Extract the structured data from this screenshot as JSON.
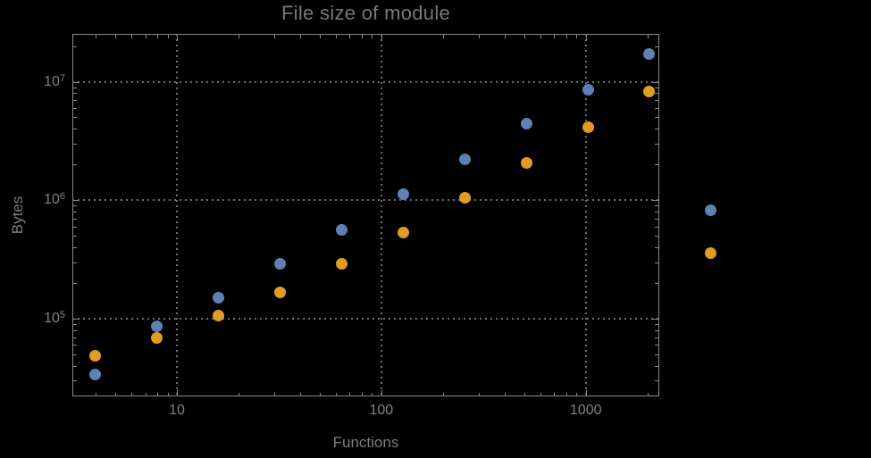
{
  "chart_data": {
    "type": "scatter",
    "title": "File size of module",
    "xlabel": "Functions",
    "ylabel": "Bytes",
    "x_scale": "log",
    "y_scale": "log",
    "grid": "dotted",
    "legend": "none",
    "background_color": "#000000",
    "frame_color": "#8a8a8a",
    "grid_color": "#6f6f6f",
    "text_color": "#7d7d7d",
    "xlim": [
      3.1,
      2290
    ],
    "ylim": [
      22000,
      24400000
    ],
    "x_major_ticks": [
      {
        "value": 10,
        "label": "10"
      },
      {
        "value": 100,
        "label": "100"
      },
      {
        "value": 1000,
        "label": "1000"
      }
    ],
    "y_major_ticks": [
      {
        "value": 100000,
        "base": "10",
        "exp": "5"
      },
      {
        "value": 1000000,
        "base": "10",
        "exp": "6"
      },
      {
        "value": 10000000,
        "base": "10",
        "exp": "7"
      }
    ],
    "x": [
      4,
      8,
      16,
      32,
      64,
      128,
      256,
      512,
      1024,
      2048,
      4096
    ],
    "series": [
      {
        "name": "blue-series",
        "color": "#5e81b5",
        "values": [
          34000,
          86000,
          150000,
          290000,
          560000,
          1120000,
          2200000,
          4400000,
          8500000,
          17000000,
          820000
        ]
      },
      {
        "name": "orange-series",
        "color": "#e19c24",
        "values": [
          49000,
          69000,
          107000,
          168000,
          290000,
          530000,
          1040000,
          2060000,
          4100000,
          8200000,
          360000
        ]
      }
    ]
  }
}
